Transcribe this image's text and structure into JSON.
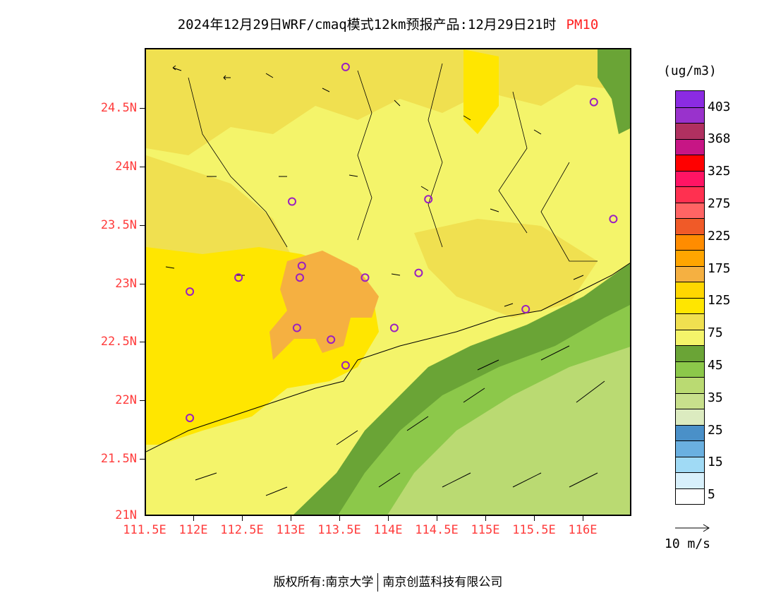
{
  "title": {
    "text": "2024年12月29日WRF/cmaq模式12km预报产品:12月29日21时",
    "variable": "PM10"
  },
  "axes": {
    "lat_labels": [
      "24.5N",
      "24N",
      "23.5N",
      "23N",
      "22.5N",
      "22N",
      "21.5N",
      "21N"
    ],
    "lon_labels": [
      "111.5E",
      "112E",
      "112.5E",
      "113E",
      "113.5E",
      "114E",
      "114.5E",
      "115E",
      "115.5E",
      "116E"
    ],
    "lat_range": [
      21.0,
      25.0
    ],
    "lon_range": [
      111.5,
      116.5
    ]
  },
  "legend": {
    "units": "(ug/m3)",
    "colors": [
      "#8b2be2",
      "#9932cc",
      "#b03060",
      "#c71585",
      "#ff0000",
      "#ff1464",
      "#ff3050",
      "#ff6464",
      "#f05a28",
      "#ff8c00",
      "#ffa500",
      "#f5b041",
      "#ffd700",
      "#ffe600",
      "#f0e050",
      "#f4f46a",
      "#6aa436",
      "#8cc84a",
      "#bada72",
      "#c8e08c",
      "#dcebc0",
      "#4a90c8",
      "#6ab0e0",
      "#a0daf5",
      "#d8f0fb",
      "#ffffff"
    ],
    "labels": [
      "403",
      "368",
      "325",
      "275",
      "225",
      "175",
      "125",
      "75",
      "45",
      "35",
      "25",
      "15",
      "5"
    ]
  },
  "wind_key": {
    "label": "10 m/s"
  },
  "stations": [
    {
      "lon": 113.55,
      "lat": 24.85
    },
    {
      "lon": 116.1,
      "lat": 24.55
    },
    {
      "lon": 113.0,
      "lat": 23.7
    },
    {
      "lon": 114.4,
      "lat": 23.72
    },
    {
      "lon": 116.3,
      "lat": 23.55
    },
    {
      "lon": 112.45,
      "lat": 23.05
    },
    {
      "lon": 113.1,
      "lat": 23.15
    },
    {
      "lon": 113.08,
      "lat": 23.05
    },
    {
      "lon": 113.75,
      "lat": 23.05
    },
    {
      "lon": 114.3,
      "lat": 23.09
    },
    {
      "lon": 111.95,
      "lat": 22.93
    },
    {
      "lon": 115.4,
      "lat": 22.78
    },
    {
      "lon": 113.05,
      "lat": 22.62
    },
    {
      "lon": 113.4,
      "lat": 22.52
    },
    {
      "lon": 114.05,
      "lat": 22.62
    },
    {
      "lon": 113.55,
      "lat": 22.3
    },
    {
      "lon": 111.95,
      "lat": 21.85
    }
  ],
  "footer": {
    "left": "版权所有:南京大学",
    "right": "南京创蓝科技有限公司"
  }
}
